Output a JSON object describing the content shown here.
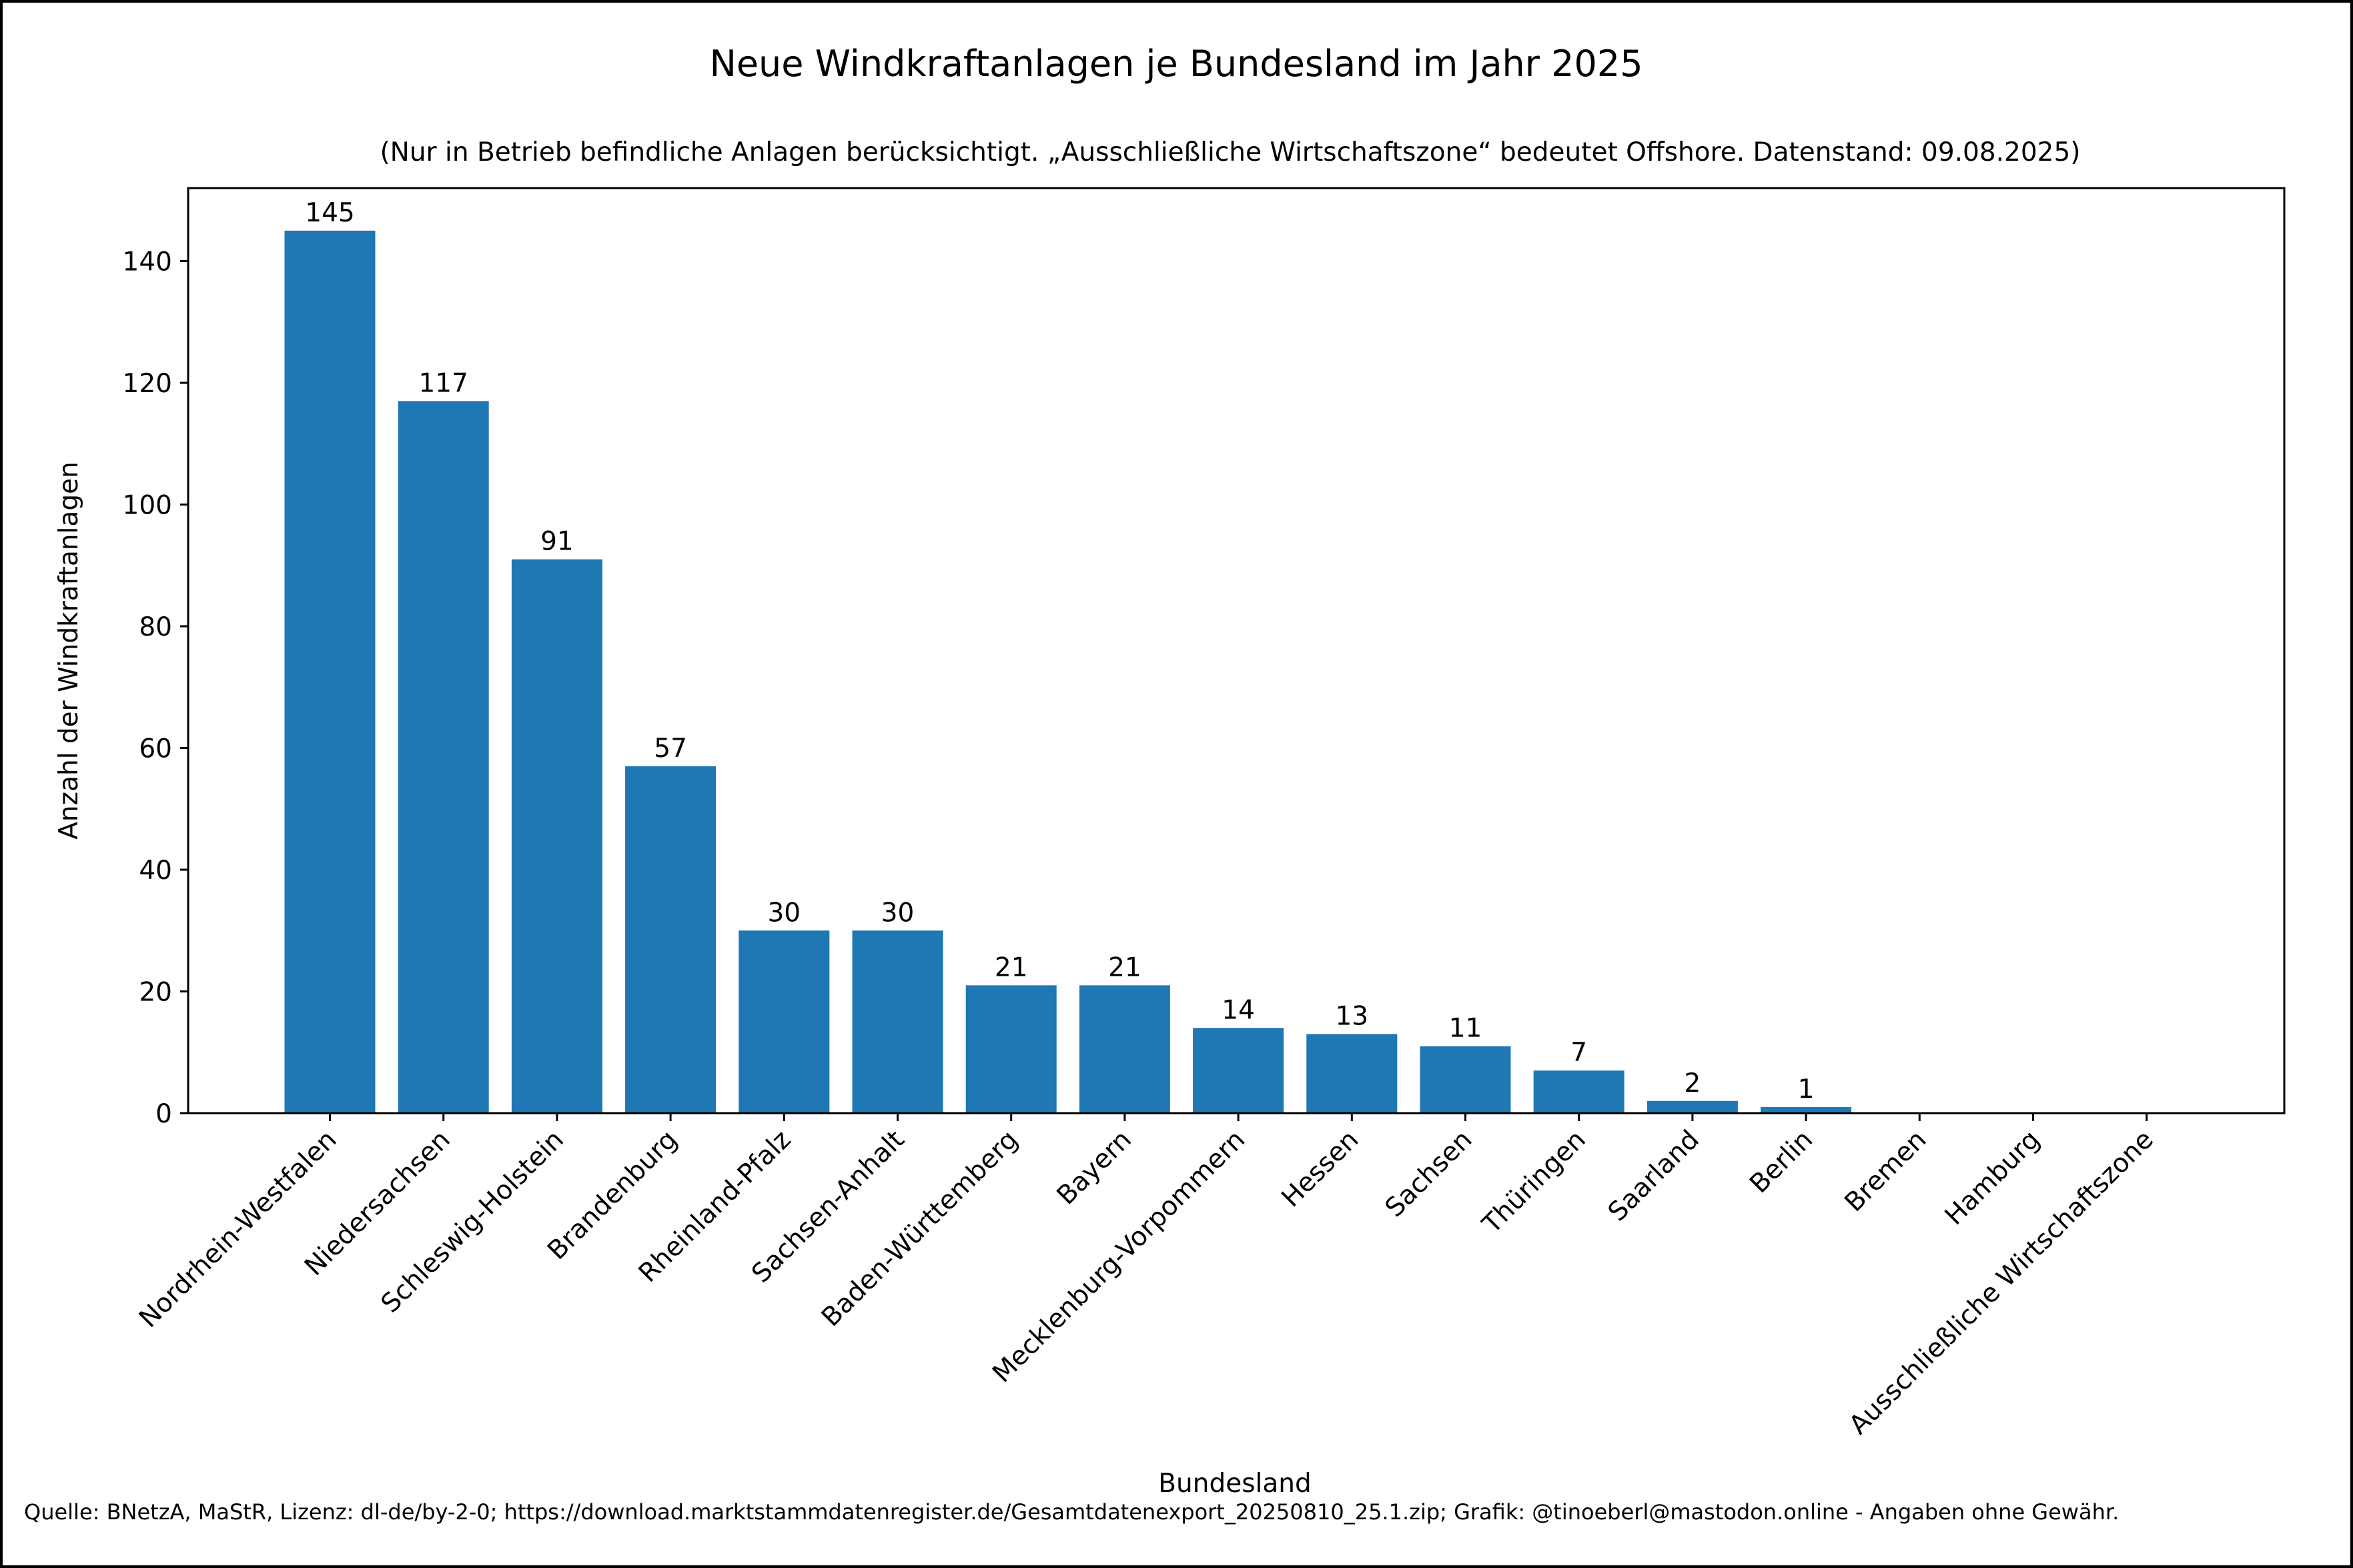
{
  "chart_data": {
    "type": "bar",
    "title": "Neue Windkraftanlagen je Bundesland im Jahr 2025",
    "subtitle": "(Nur in Betrieb befindliche Anlagen berücksichtigt. „Ausschließliche Wirtschaftszone“ bedeutet Offshore. Datenstand: 09.08.2025)",
    "xlabel": "Bundesland",
    "ylabel": "Anzahl der Windkraftanlagen",
    "source": "Quelle: BNetzA, MaStR, Lizenz: dl-de/by-2-0; https://download.marktstammdatenregister.de/Gesamtdatenexport_20250810_25.1.zip; Grafik: @tinoeberl@mastodon.online - Angaben ohne Gewähr.",
    "categories": [
      "Nordrhein-Westfalen",
      "Niedersachsen",
      "Schleswig-Holstein",
      "Brandenburg",
      "Rheinland-Pfalz",
      "Sachsen-Anhalt",
      "Baden-Württemberg",
      "Bayern",
      "Mecklenburg-Vorpommern",
      "Hessen",
      "Sachsen",
      "Thüringen",
      "Saarland",
      "Berlin",
      "Bremen",
      "Hamburg",
      "Ausschließliche Wirtschaftszone"
    ],
    "values": [
      145,
      117,
      91,
      57,
      30,
      30,
      21,
      21,
      14,
      13,
      11,
      7,
      2,
      1,
      0,
      0,
      0
    ],
    "data_labels": [
      "145",
      "117",
      "91",
      "57",
      "30",
      "30",
      "21",
      "21",
      "14",
      "13",
      "11",
      "7",
      "2",
      "1",
      "",
      "",
      ""
    ],
    "ylim": [
      0,
      152
    ],
    "yticks": [
      0,
      20,
      40,
      60,
      80,
      100,
      120,
      140
    ],
    "grid": false,
    "bar_color": "#1f77b4"
  }
}
